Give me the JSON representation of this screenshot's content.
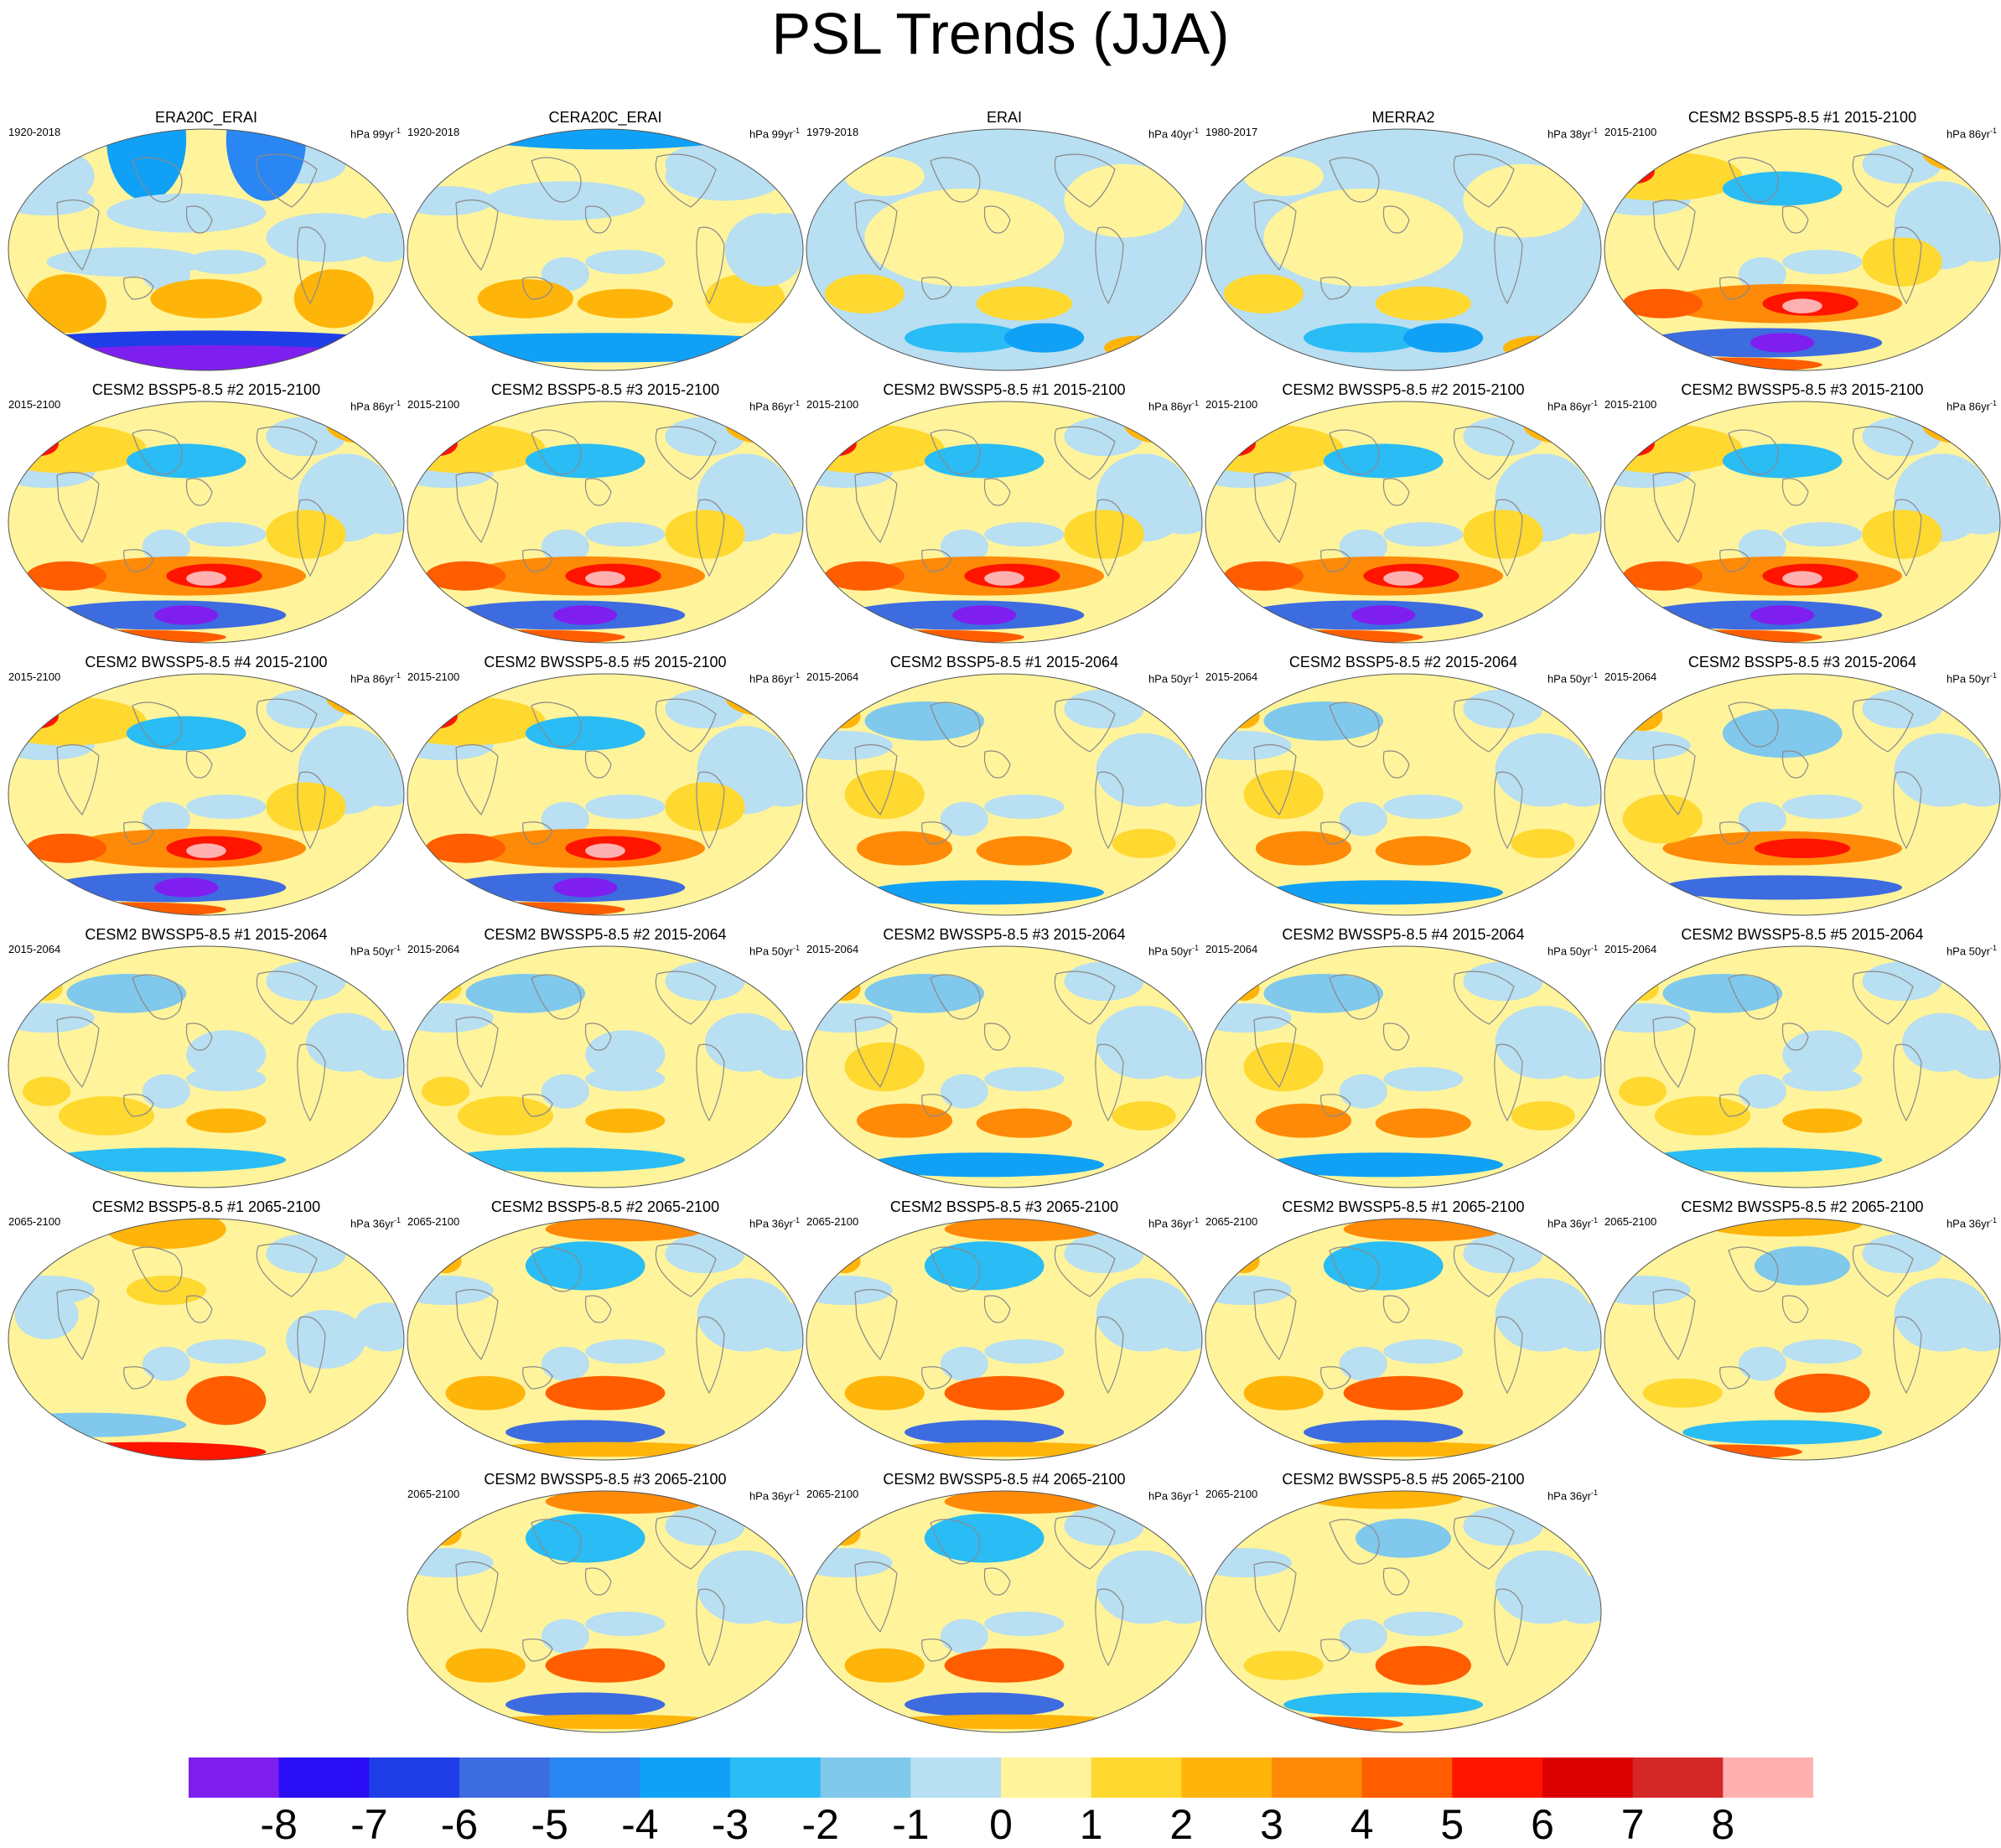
{
  "figure": {
    "title": "PSL Trends (JJA)"
  },
  "panels": [
    {
      "title": "ERA20C_ERAI",
      "period": "1920-2018",
      "unit": "hPa 99yr",
      "unit_exp": "-1",
      "pattern": "era20c"
    },
    {
      "title": "CERA20C_ERAI",
      "period": "1920-2018",
      "unit": "hPa 99yr",
      "unit_exp": "-1",
      "pattern": "cera20c"
    },
    {
      "title": "ERAI",
      "period": "1979-2018",
      "unit": "hPa 40yr",
      "unit_exp": "-1",
      "pattern": "erai"
    },
    {
      "title": "MERRA2",
      "period": "1980-2017",
      "unit": "hPa 38yr",
      "unit_exp": "-1",
      "pattern": "erai"
    },
    {
      "title": "CESM2 BSSP5-8.5 #1 2015-2100",
      "period": "2015-2100",
      "unit": "hPa 86yr",
      "unit_exp": "-1",
      "pattern": "strong"
    },
    {
      "title": "CESM2 BSSP5-8.5 #2 2015-2100",
      "period": "2015-2100",
      "unit": "hPa 86yr",
      "unit_exp": "-1",
      "pattern": "strong"
    },
    {
      "title": "CESM2 BSSP5-8.5 #3 2015-2100",
      "period": "2015-2100",
      "unit": "hPa 86yr",
      "unit_exp": "-1",
      "pattern": "strong"
    },
    {
      "title": "CESM2 BWSSP5-8.5 #1 2015-2100",
      "period": "2015-2100",
      "unit": "hPa 86yr",
      "unit_exp": "-1",
      "pattern": "strong"
    },
    {
      "title": "CESM2 BWSSP5-8.5 #2 2015-2100",
      "period": "2015-2100",
      "unit": "hPa 86yr",
      "unit_exp": "-1",
      "pattern": "strong"
    },
    {
      "title": "CESM2 BWSSP5-8.5 #3 2015-2100",
      "period": "2015-2100",
      "unit": "hPa 86yr",
      "unit_exp": "-1",
      "pattern": "strong"
    },
    {
      "title": "CESM2 BWSSP5-8.5 #4 2015-2100",
      "period": "2015-2100",
      "unit": "hPa 86yr",
      "unit_exp": "-1",
      "pattern": "strong"
    },
    {
      "title": "CESM2 BWSSP5-8.5 #5 2015-2100",
      "period": "2015-2100",
      "unit": "hPa 86yr",
      "unit_exp": "-1",
      "pattern": "strong"
    },
    {
      "title": "CESM2 BSSP5-8.5 #1 2015-2064",
      "period": "2015-2064",
      "unit": "hPa 50yr",
      "unit_exp": "-1",
      "pattern": "mid"
    },
    {
      "title": "CESM2 BSSP5-8.5 #2 2015-2064",
      "period": "2015-2064",
      "unit": "hPa 50yr",
      "unit_exp": "-1",
      "pattern": "mid"
    },
    {
      "title": "CESM2 BSSP5-8.5 #3 2015-2064",
      "period": "2015-2064",
      "unit": "hPa 50yr",
      "unit_exp": "-1",
      "pattern": "midstrong"
    },
    {
      "title": "CESM2 BWSSP5-8.5 #1 2015-2064",
      "period": "2015-2064",
      "unit": "hPa 50yr",
      "unit_exp": "-1",
      "pattern": "weak"
    },
    {
      "title": "CESM2 BWSSP5-8.5 #2 2015-2064",
      "period": "2015-2064",
      "unit": "hPa 50yr",
      "unit_exp": "-1",
      "pattern": "weak"
    },
    {
      "title": "CESM2 BWSSP5-8.5 #3 2015-2064",
      "period": "2015-2064",
      "unit": "hPa 50yr",
      "unit_exp": "-1",
      "pattern": "mid"
    },
    {
      "title": "CESM2 BWSSP5-8.5 #4 2015-2064",
      "period": "2015-2064",
      "unit": "hPa 50yr",
      "unit_exp": "-1",
      "pattern": "mid"
    },
    {
      "title": "CESM2 BWSSP5-8.5 #5 2015-2064",
      "period": "2015-2064",
      "unit": "hPa 50yr",
      "unit_exp": "-1",
      "pattern": "weak"
    },
    {
      "title": "CESM2 BSSP5-8.5 #1 2065-2100",
      "period": "2065-2100",
      "unit": "hPa 36yr",
      "unit_exp": "-1",
      "pattern": "late1"
    },
    {
      "title": "CESM2 BSSP5-8.5 #2 2065-2100",
      "period": "2065-2100",
      "unit": "hPa 36yr",
      "unit_exp": "-1",
      "pattern": "late2"
    },
    {
      "title": "CESM2 BSSP5-8.5 #3 2065-2100",
      "period": "2065-2100",
      "unit": "hPa 36yr",
      "unit_exp": "-1",
      "pattern": "late2"
    },
    {
      "title": "CESM2 BWSSP5-8.5 #1 2065-2100",
      "period": "2065-2100",
      "unit": "hPa 36yr",
      "unit_exp": "-1",
      "pattern": "late2"
    },
    {
      "title": "CESM2 BWSSP5-8.5 #2 2065-2100",
      "period": "2065-2100",
      "unit": "hPa 36yr",
      "unit_exp": "-1",
      "pattern": "late3"
    },
    {
      "title": "CESM2 BWSSP5-8.5 #3 2065-2100",
      "period": "2065-2100",
      "unit": "hPa 36yr",
      "unit_exp": "-1",
      "pattern": "late2"
    },
    {
      "title": "CESM2 BWSSP5-8.5 #4 2065-2100",
      "period": "2065-2100",
      "unit": "hPa 36yr",
      "unit_exp": "-1",
      "pattern": "late2"
    },
    {
      "title": "CESM2 BWSSP5-8.5 #5 2065-2100",
      "period": "2065-2100",
      "unit": "hPa 36yr",
      "unit_exp": "-1",
      "pattern": "late3"
    }
  ],
  "colorbar": {
    "colors": [
      "#7f1fef",
      "#2a0ef5",
      "#1f3ee8",
      "#3d6be0",
      "#2a86f2",
      "#10a1f7",
      "#2abcf5",
      "#80c8ec",
      "#b8dff2",
      "#fff49b",
      "#ffd830",
      "#ffb40a",
      "#ff8a08",
      "#ff5d00",
      "#ff1400",
      "#dd0000",
      "#d42828",
      "#ffb0b0"
    ],
    "labels": [
      "-8",
      "-7",
      "-6",
      "-5",
      "-4",
      "-3",
      "-2",
      "-1",
      "0",
      "1",
      "2",
      "3",
      "4",
      "5",
      "6",
      "7",
      "8"
    ]
  }
}
